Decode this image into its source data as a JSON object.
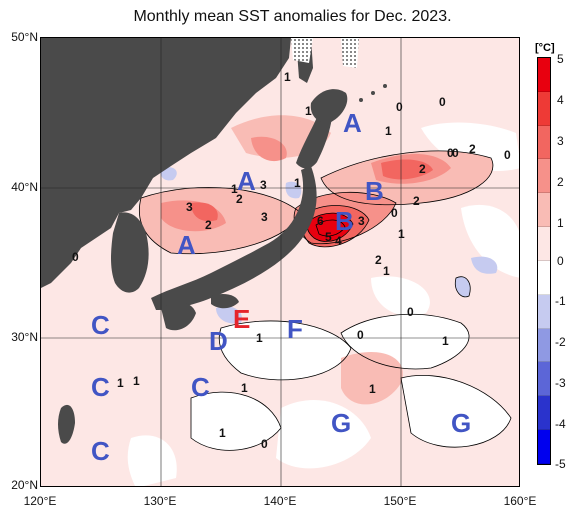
{
  "title": "Monthly mean SST anomalies for Dec. 2023.",
  "latitude_labels": [
    "50°N",
    "40°N",
    "30°N",
    "20°N"
  ],
  "longitude_labels": [
    "120°E",
    "130°E",
    "140°E",
    "150°E",
    "160°E"
  ],
  "colorbar": {
    "unit": "[°C]",
    "tick_labels": [
      "5",
      "4",
      "3",
      "2",
      "1",
      "0",
      "-1",
      "-2",
      "-3",
      "-4",
      "-5"
    ],
    "colors": [
      "#e8000f",
      "#ee3a36",
      "#f26660",
      "#f6918a",
      "#f9bcb5",
      "#fde7e5",
      "#ffffff",
      "#c6cbf0",
      "#8f99e3",
      "#5c66d7",
      "#2a33cc",
      "#0000ee"
    ]
  },
  "region_letters": [
    "A",
    "A",
    "A",
    "B",
    "B",
    "C",
    "C",
    "C",
    "C",
    "D",
    "E",
    "F",
    "G",
    "G"
  ],
  "contour_labels": [
    "1",
    "0",
    "0",
    "1",
    "0",
    "2",
    "0",
    "3",
    "1",
    "2",
    "3",
    "1",
    "2",
    "6",
    "5",
    "4",
    "3",
    "0",
    "2",
    "1",
    "2",
    "1",
    "0",
    "1",
    "0",
    "0",
    "1",
    "1",
    "1",
    "1",
    "1",
    "0",
    "1",
    "1",
    "2",
    "3",
    "0"
  ],
  "colors": {
    "land": "#4a4a4a",
    "ocean_base": "#fde7e5",
    "region_letter": "#4155c4",
    "highlight_letter": "#e5242b"
  }
}
